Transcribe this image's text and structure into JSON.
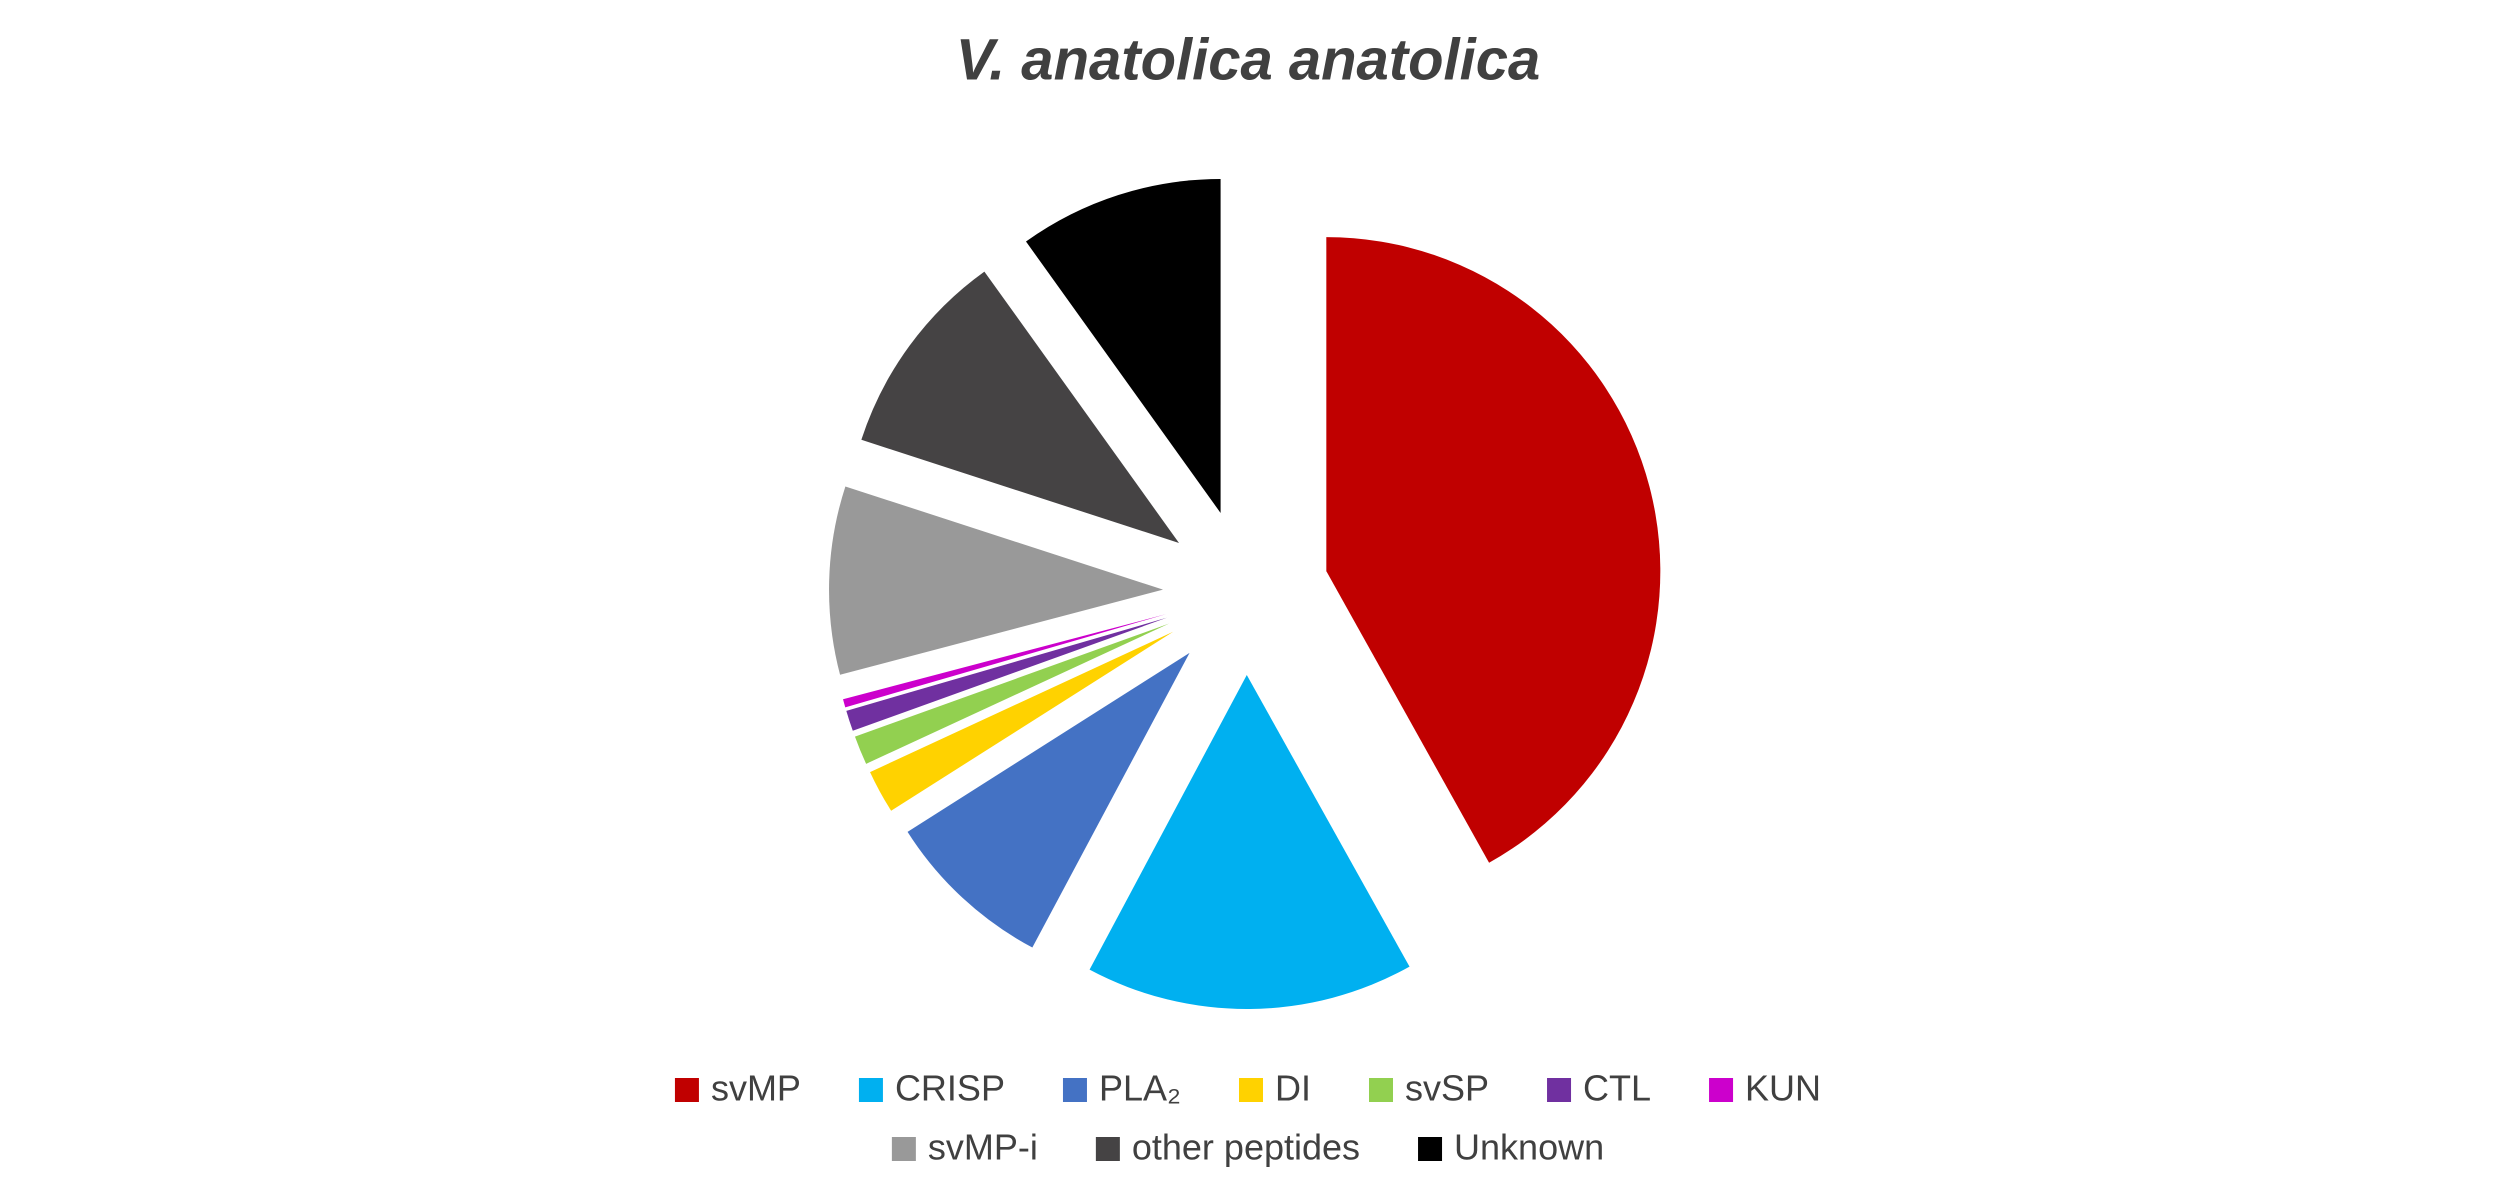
{
  "chart_data": {
    "type": "pie",
    "title": "V. anatolica anatolica",
    "categories": [
      "svMP",
      "CRISP",
      "PLA₂",
      "DI",
      "svSP",
      "CTL",
      "KUN",
      "svMP-i",
      "other peptides",
      "Unknown"
    ],
    "values": [
      41.9,
      15.9,
      8.2,
      2.1,
      1.4,
      1.0,
      0.4,
      9.1,
      10.1,
      9.9
    ],
    "colors": [
      "#c00000",
      "#00b0f0",
      "#4472c4",
      "#ffd200",
      "#92d050",
      "#7030a0",
      "#cc00cc",
      "#999999",
      "#454344",
      "#000000"
    ],
    "legend": "bottom"
  }
}
